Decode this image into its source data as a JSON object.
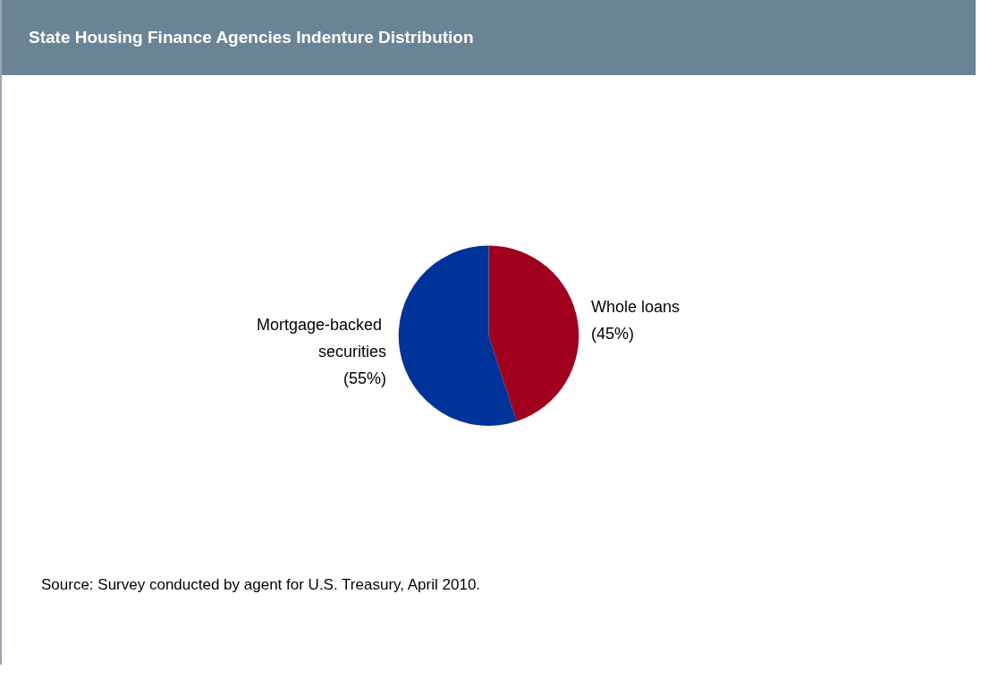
{
  "chart_data": {
    "type": "pie",
    "title": "State Housing Finance Agencies Indenture Distribution",
    "categories": [
      "Whole loans",
      "Mortgage-backed securities"
    ],
    "values": [
      45,
      55
    ],
    "colors": [
      "#a0001e",
      "#003399"
    ],
    "value_labels": [
      "(45%)",
      "(55%)"
    ],
    "legend": false,
    "annotations": [
      "Source: Survey conducted by agent for U.S. Treasury, April 2010."
    ]
  }
}
